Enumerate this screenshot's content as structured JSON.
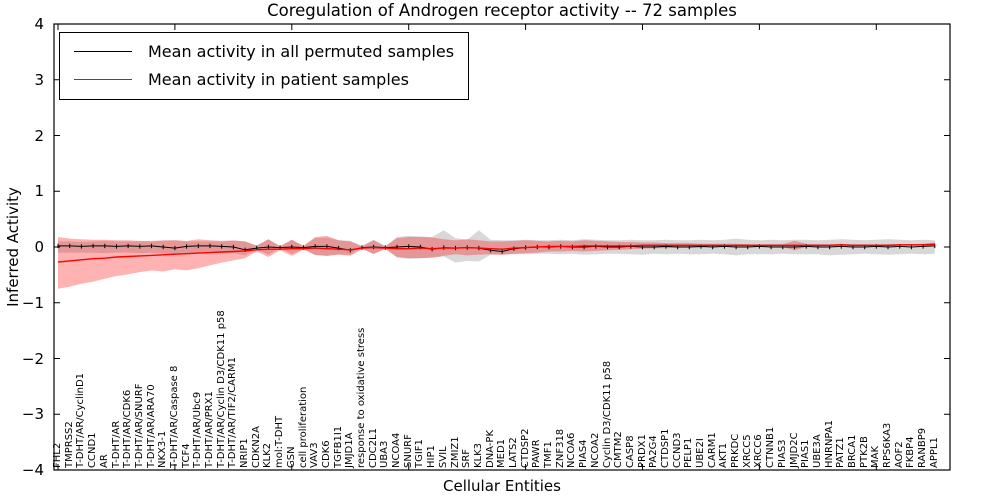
{
  "figure": {
    "background": "#ffffff"
  },
  "legend": {
    "entries": [
      {
        "label": "Mean activity in all permuted samples",
        "color": "#000000"
      },
      {
        "label": "Mean activity in patient samples",
        "color": "#ff0000"
      }
    ]
  },
  "chart_data": {
    "type": "line",
    "title": "Coregulation of Androgen receptor activity -- 72 samples",
    "xlabel": "Cellular Entities",
    "ylabel": "Inferred Activity",
    "ylim": [
      -4,
      4
    ],
    "yticks": [
      4,
      3,
      2,
      1,
      0,
      -1,
      -2,
      -3,
      -4
    ],
    "ytick_labels": [
      "4",
      "3",
      "2",
      "1",
      "0",
      "−1",
      "−2",
      "−3",
      "−4"
    ],
    "xtick_positions": [
      0,
      10,
      20,
      30,
      40,
      50,
      60,
      70
    ],
    "grid": false,
    "legend_position": "upper left",
    "categories": [
      "FHL2",
      "TMPRSS2",
      "T-DHT/AR/CyclinD1",
      "CCND1",
      "AR",
      "T-DHT/AR",
      "T-DHT/AR/CDK6",
      "T-DHT/AR/SNURF",
      "T-DHT/AR/ARA70",
      "NKX3-1",
      "T-DHT/AR/Caspase 8",
      "TCF4",
      "T-DHT/AR/Ubc9",
      "T-DHT/AR/PRX1",
      "T-DHT/AR/Cyclin D3/CDK11 p58",
      "T-DHT/AR/TIF2/CARM1",
      "NRIP1",
      "CDKN2A",
      "KLK2",
      "mol:T-DHT",
      "GSN",
      "cell proliferation",
      "VAV3",
      "CDK6",
      "TGFB1I1",
      "JMJD1A",
      "response to oxidative stress",
      "CDC2L1",
      "UBA3",
      "NCOA4",
      "SNURF",
      "TGIF1",
      "HIP1",
      "SVIL",
      "ZMIZ1",
      "SRF",
      "KLK3",
      "DNA-PK",
      "MED1",
      "LATS2",
      "CTDSP2",
      "PAWR",
      "TMF1",
      "ZNF318",
      "NCOA6",
      "PIAS4",
      "NCOA2",
      "Cyclin D3/CDK11 p58",
      "CMTM2",
      "CASP8",
      "PRDX1",
      "PA2G4",
      "CTDSP1",
      "CCND3",
      "PELP1",
      "UBE2I",
      "CARM1",
      "AKT1",
      "PRKDC",
      "XRCC5",
      "XRCC6",
      "CTNNB1",
      "PIAS3",
      "JMJD2C",
      "PIAS1",
      "UBE3A",
      "HNRNPA1",
      "PATZ1",
      "BRCA1",
      "PTK2B",
      "MAK",
      "RPS6KA3",
      "AOF2",
      "FKBP4",
      "RANBP9",
      "APPL1"
    ],
    "series": [
      {
        "name": "Mean activity in all permuted samples",
        "color": "#000000",
        "values": [
          0.02,
          0.02,
          0.01,
          0.02,
          0.02,
          0.01,
          0.02,
          0.01,
          0.02,
          0.0,
          -0.02,
          0.01,
          0.02,
          0.02,
          0.01,
          0.0,
          -0.05,
          -0.02,
          0.0,
          -0.01,
          0.0,
          -0.01,
          0.01,
          0.01,
          -0.02,
          -0.06,
          -0.01,
          0.0,
          -0.01,
          0.0,
          0.01,
          0.0,
          -0.04,
          -0.01,
          -0.02,
          -0.01,
          -0.02,
          -0.06,
          -0.08,
          -0.03,
          -0.01,
          0.0,
          0.0,
          0.01,
          0.0,
          0.0,
          0.01,
          0.0,
          0.0,
          0.01,
          0.0,
          0.0,
          0.01,
          0.0,
          0.0,
          0.01,
          0.0,
          0.01,
          0.0,
          0.0,
          0.01,
          0.0,
          0.0,
          0.0,
          0.01,
          0.0,
          0.0,
          0.01,
          0.0,
          0.0,
          0.01,
          0.0,
          0.01,
          0.0,
          0.01,
          0.02
        ]
      },
      {
        "name": "Mean activity in patient samples",
        "color": "#ff0000",
        "values": [
          -0.27,
          -0.25,
          -0.23,
          -0.21,
          -0.2,
          -0.18,
          -0.17,
          -0.16,
          -0.15,
          -0.14,
          -0.13,
          -0.12,
          -0.11,
          -0.1,
          -0.09,
          -0.08,
          -0.07,
          -0.05,
          -0.04,
          -0.04,
          -0.03,
          -0.03,
          -0.02,
          -0.03,
          -0.04,
          -0.05,
          -0.02,
          -0.01,
          -0.02,
          -0.03,
          -0.03,
          -0.02,
          -0.03,
          -0.02,
          -0.02,
          -0.01,
          -0.02,
          -0.03,
          -0.04,
          -0.02,
          -0.01,
          0.0,
          0.01,
          0.01,
          0.01,
          0.02,
          0.02,
          0.02,
          0.02,
          0.02,
          0.03,
          0.03,
          0.03,
          0.03,
          0.03,
          0.03,
          0.03,
          0.03,
          0.03,
          0.03,
          0.03,
          0.03,
          0.03,
          0.03,
          0.03,
          0.03,
          0.03,
          0.04,
          0.03,
          0.03,
          0.03,
          0.03,
          0.04,
          0.04,
          0.04,
          0.05
        ]
      }
    ],
    "bands": [
      {
        "name": "permuted-samples-band",
        "color": "#999999",
        "opacity": 0.38,
        "upper": [
          0.1,
          0.1,
          0.09,
          0.1,
          0.11,
          0.1,
          0.1,
          0.1,
          0.1,
          0.11,
          0.12,
          0.1,
          0.1,
          0.1,
          0.1,
          0.11,
          0.1,
          0.03,
          0.14,
          0.02,
          0.13,
          0.02,
          0.16,
          0.17,
          0.12,
          0.11,
          0.02,
          0.13,
          0.02,
          0.18,
          0.2,
          0.19,
          0.18,
          0.3,
          0.16,
          0.13,
          0.3,
          0.13,
          0.12,
          0.12,
          0.13,
          0.12,
          0.12,
          0.13,
          0.12,
          0.14,
          0.13,
          0.12,
          0.12,
          0.13,
          0.12,
          0.12,
          0.13,
          0.12,
          0.12,
          0.13,
          0.12,
          0.13,
          0.15,
          0.13,
          0.12,
          0.13,
          0.12,
          0.13,
          0.13,
          0.12,
          0.13,
          0.14,
          0.13,
          0.12,
          0.13,
          0.14,
          0.13,
          0.12,
          0.13,
          0.12
        ],
        "lower": [
          -0.1,
          -0.1,
          -0.1,
          -0.1,
          -0.11,
          -0.1,
          -0.1,
          -0.11,
          -0.1,
          -0.12,
          -0.14,
          -0.11,
          -0.1,
          -0.1,
          -0.11,
          -0.11,
          -0.15,
          -0.04,
          -0.14,
          -0.02,
          -0.13,
          -0.03,
          -0.15,
          -0.16,
          -0.13,
          -0.14,
          -0.02,
          -0.13,
          -0.02,
          -0.19,
          -0.21,
          -0.2,
          -0.19,
          -0.17,
          -0.28,
          -0.25,
          -0.26,
          -0.14,
          -0.14,
          -0.13,
          -0.13,
          -0.12,
          -0.12,
          -0.13,
          -0.12,
          -0.14,
          -0.13,
          -0.12,
          -0.12,
          -0.13,
          -0.14,
          -0.12,
          -0.13,
          -0.12,
          -0.13,
          -0.13,
          -0.12,
          -0.13,
          -0.15,
          -0.13,
          -0.13,
          -0.13,
          -0.12,
          -0.13,
          -0.13,
          -0.13,
          -0.15,
          -0.14,
          -0.13,
          -0.12,
          -0.13,
          -0.14,
          -0.13,
          -0.12,
          -0.13,
          -0.12
        ]
      },
      {
        "name": "patient-samples-band",
        "color": "#ff0000",
        "opacity": 0.3,
        "upper": [
          0.18,
          0.15,
          0.14,
          0.13,
          0.13,
          0.12,
          0.12,
          0.11,
          0.11,
          0.12,
          0.12,
          0.11,
          0.14,
          0.12,
          0.11,
          0.12,
          0.1,
          0.02,
          0.14,
          0.01,
          0.13,
          0.02,
          0.18,
          0.2,
          0.12,
          0.1,
          0.01,
          0.12,
          0.01,
          0.16,
          0.18,
          0.18,
          0.17,
          0.14,
          0.12,
          0.14,
          0.12,
          0.1,
          0.1,
          0.11,
          0.12,
          0.11,
          0.1,
          0.11,
          0.1,
          0.12,
          0.11,
          0.1,
          0.09,
          0.09,
          0.08,
          0.08,
          0.07,
          0.07,
          0.07,
          0.06,
          0.06,
          0.06,
          0.06,
          0.05,
          0.05,
          0.05,
          0.05,
          0.11,
          0.06,
          0.05,
          0.05,
          0.06,
          0.05,
          0.05,
          0.05,
          0.05,
          0.05,
          0.05,
          0.06,
          0.08
        ],
        "lower": [
          -0.75,
          -0.71,
          -0.66,
          -0.62,
          -0.57,
          -0.52,
          -0.49,
          -0.45,
          -0.42,
          -0.44,
          -0.4,
          -0.42,
          -0.38,
          -0.33,
          -0.28,
          -0.24,
          -0.2,
          -0.08,
          -0.18,
          -0.06,
          -0.16,
          -0.05,
          -0.14,
          -0.16,
          -0.14,
          -0.16,
          -0.04,
          -0.12,
          -0.04,
          -0.18,
          -0.2,
          -0.2,
          -0.19,
          -0.16,
          -0.13,
          -0.15,
          -0.14,
          -0.13,
          -0.14,
          -0.12,
          -0.11,
          -0.1,
          -0.08,
          -0.08,
          -0.07,
          -0.08,
          -0.07,
          -0.06,
          -0.05,
          -0.04,
          -0.03,
          -0.02,
          -0.02,
          -0.01,
          -0.01,
          -0.01,
          0.0,
          0.0,
          0.0,
          0.0,
          0.0,
          0.0,
          0.0,
          -0.06,
          0.0,
          0.01,
          0.01,
          0.01,
          0.01,
          0.01,
          0.01,
          0.01,
          0.02,
          0.02,
          0.02,
          0.02
        ]
      }
    ]
  }
}
